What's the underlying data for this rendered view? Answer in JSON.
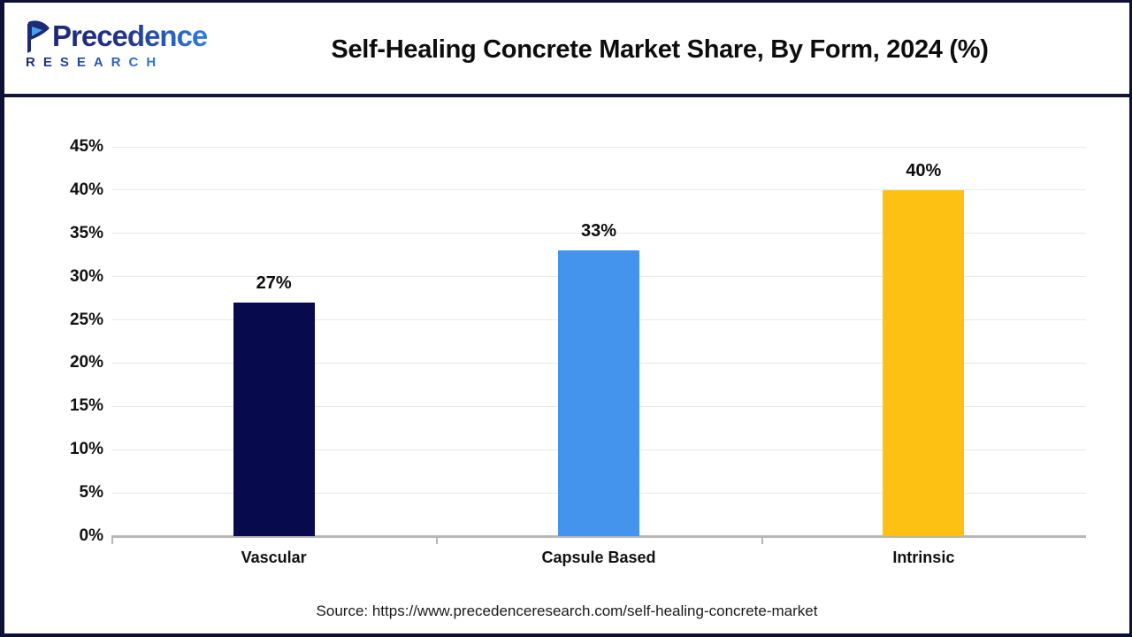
{
  "logo": {
    "name": "Precedence",
    "subtitle": "RESEARCH"
  },
  "source": "Source: https://www.precedenceresearch.com/self-healing-concrete-market",
  "chart_data": {
    "type": "bar",
    "title": "Self-Healing Concrete Market Share, By Form, 2024 (%)",
    "categories": [
      "Vascular",
      "Capsule Based",
      "Intrinsic"
    ],
    "values": [
      27,
      33,
      40
    ],
    "value_labels": [
      "27%",
      "33%",
      "40%"
    ],
    "bar_colors": [
      "#070B4E",
      "#4493EC",
      "#FDC113"
    ],
    "xlabel": "",
    "ylabel": "",
    "ylim": [
      0,
      45
    ],
    "ytick_step": 5,
    "ytick_labels": [
      "0%",
      "5%",
      "10%",
      "15%",
      "20%",
      "25%",
      "30%",
      "35%",
      "40%",
      "45%"
    ],
    "grid": true,
    "legend": false
  }
}
